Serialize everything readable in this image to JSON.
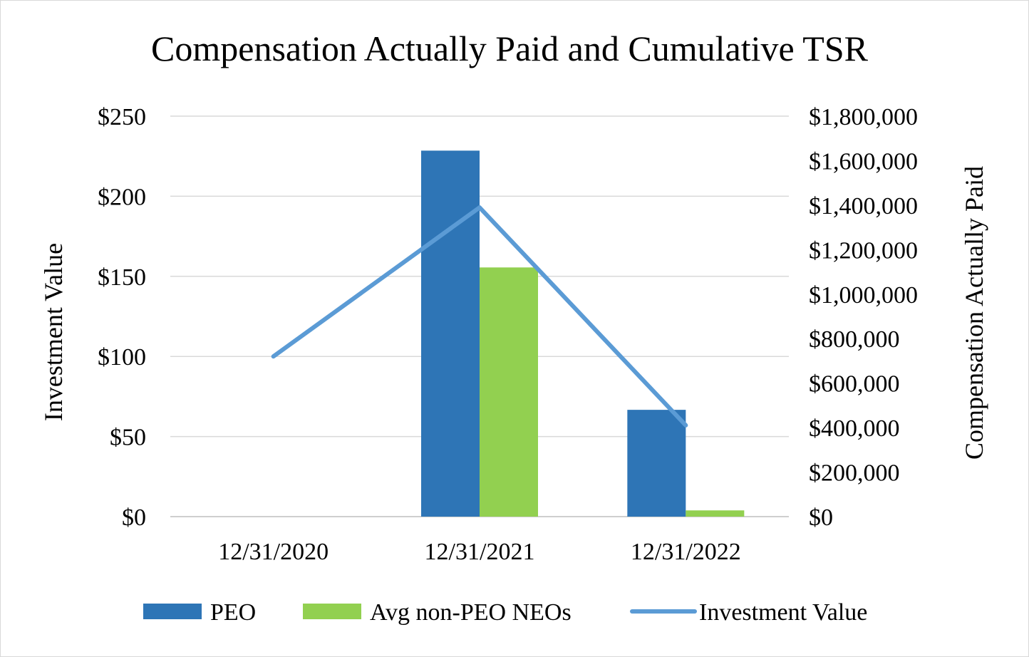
{
  "chart_data": {
    "type": "bar",
    "title": "Compensation Actually Paid and Cumulative TSR",
    "categories": [
      "12/31/2020",
      "12/31/2021",
      "12/31/2022"
    ],
    "y_left": {
      "label": "Investment Value",
      "range": [
        0,
        250
      ],
      "ticks": [
        0,
        50,
        100,
        150,
        200,
        250
      ],
      "tick_labels": [
        "$0",
        "$50",
        "$100",
        "$150",
        "$200",
        "$250"
      ]
    },
    "y_right": {
      "label": "Compensation Actually Paid",
      "range": [
        0,
        1800000
      ],
      "ticks": [
        0,
        200000,
        400000,
        600000,
        800000,
        1000000,
        1200000,
        1400000,
        1600000,
        1800000
      ],
      "tick_labels": [
        "$0",
        "$200,000",
        "$400,000",
        "$600,000",
        "$800,000",
        "$1,000,000",
        "$1,200,000",
        "$1,400,000",
        "$1,600,000",
        "$1,800,000"
      ]
    },
    "series": [
      {
        "name": "PEO",
        "kind": "bar",
        "axis": "right",
        "color": "#2e75b6",
        "values": [
          0,
          1645000,
          480000
        ]
      },
      {
        "name": "Avg non-PEO NEOs",
        "kind": "bar",
        "axis": "right",
        "color": "#92d050",
        "values": [
          0,
          1120000,
          28000
        ]
      },
      {
        "name": "Investment Value",
        "kind": "line",
        "axis": "left",
        "color": "#5b9bd5",
        "values": [
          100,
          193,
          57
        ]
      }
    ],
    "gridlines": true,
    "legend_position": "bottom"
  }
}
